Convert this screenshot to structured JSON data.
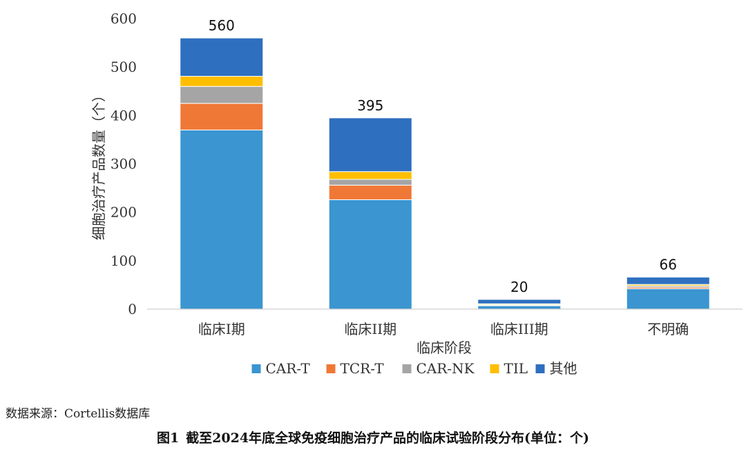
{
  "chart_data": {
    "type": "bar",
    "stacked": true,
    "categories": [
      "临床I期",
      "临床II期",
      "临床III期",
      "不明确"
    ],
    "series": [
      {
        "name": "CAR-T",
        "color": "#3A95D0",
        "values": [
          370,
          226,
          7,
          42
        ]
      },
      {
        "name": "TCR-T",
        "color": "#F07836",
        "values": [
          55,
          30,
          1,
          3
        ]
      },
      {
        "name": "CAR-NK",
        "color": "#A5A5A5",
        "values": [
          35,
          12,
          1,
          3
        ]
      },
      {
        "name": "TIL",
        "color": "#FFBE00",
        "values": [
          21,
          16,
          2,
          3
        ]
      },
      {
        "name": "其他",
        "color": "#2E6FBF",
        "values": [
          79,
          111,
          9,
          15
        ]
      }
    ],
    "totals": [
      560,
      395,
      20,
      66
    ],
    "xlabel": "临床阶段",
    "ylabel": "细胞治疗产品数量（个）",
    "ylim": [
      0,
      600
    ],
    "yticks": [
      0,
      100,
      200,
      300,
      400,
      500,
      600
    ],
    "grid": false,
    "legend_position": "bottom"
  },
  "source_note": "数据来源：Cortellis数据库",
  "caption": {
    "figure_number": "图1",
    "text": "截至2024年底全球免疫细胞治疗产品的临床试验阶段分布(单位：个)"
  }
}
